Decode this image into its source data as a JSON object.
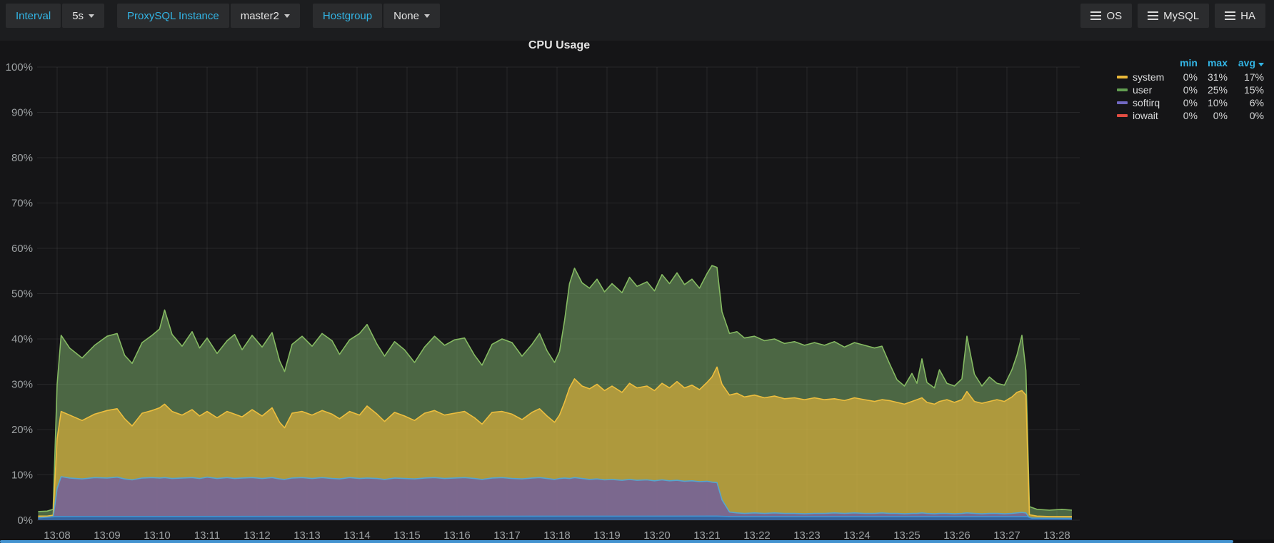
{
  "colors": {
    "accent_link": "#33b5e5",
    "page_bg": "#151517",
    "toolbar_bg": "#1c1d1f",
    "button_bg": "#2b2c2e",
    "grid": "rgba(255,255,255,0.08)",
    "tick_text": "#9ea2a4",
    "scrollbar": "#4493d0"
  },
  "toolbar": {
    "variables": [
      {
        "label": "Interval",
        "value": "5s"
      },
      {
        "label": "ProxySQL Instance",
        "value": "master2"
      },
      {
        "label": "Hostgroup",
        "value": "None"
      }
    ],
    "menus": [
      {
        "label": "OS"
      },
      {
        "label": "MySQL"
      },
      {
        "label": "HA"
      }
    ]
  },
  "panel": {
    "title": "CPU Usage",
    "legend": {
      "header": {
        "min": "min",
        "max": "max",
        "avg": "avg"
      },
      "sorted_by": "avg",
      "series": [
        {
          "name": "system",
          "color": "#EAB839",
          "min": "0%",
          "max": "31%",
          "avg": "17%"
        },
        {
          "name": "user",
          "color": "#629E51",
          "min": "0%",
          "max": "25%",
          "avg": "15%"
        },
        {
          "name": "softirq",
          "color": "#7168C2",
          "min": "0%",
          "max": "10%",
          "avg": "6%"
        },
        {
          "name": "iowait",
          "color": "#E24D42",
          "min": "0%",
          "max": "0%",
          "avg": "0%"
        }
      ]
    }
  },
  "chart_data": {
    "type": "area",
    "stacked": true,
    "title": "CPU Usage",
    "grid": true,
    "legend_position": "right-top",
    "xlabel": "",
    "ylabel": "",
    "ylim": [
      0,
      100
    ],
    "y_axis": {
      "labels": [
        "0%",
        "10%",
        "20%",
        "30%",
        "40%",
        "50%",
        "60%",
        "70%",
        "80%",
        "90%",
        "100%"
      ],
      "step": 10
    },
    "x_axis": {
      "start_minute": 8,
      "end_minute": 28,
      "labels": [
        "13:08",
        "13:09",
        "13:10",
        "13:11",
        "13:12",
        "13:13",
        "13:14",
        "13:15",
        "13:16",
        "13:17",
        "13:18",
        "13:19",
        "13:20",
        "13:21",
        "13:22",
        "13:23",
        "13:24",
        "13:25",
        "13:26",
        "13:27",
        "13:28"
      ]
    },
    "series_styles": {
      "user": {
        "fill": "#7EB26D",
        "fill_alpha": 0.52,
        "line": "#85BA62"
      },
      "system": {
        "fill": "#EAB839",
        "fill_alpha": 0.62,
        "line": "#EDBE3E"
      },
      "softirq": {
        "fill": "#705DA0",
        "fill_alpha": 0.82,
        "line": "#55A6CF"
      },
      "bottom_strip": {
        "fill": "#2F64A0",
        "fill_alpha": 0.9,
        "line": "#4493D0"
      }
    },
    "series_order_bottom_to_top": [
      "softirq",
      "system",
      "user"
    ],
    "points_format": [
      "minute",
      "softirq_stack_top_pct",
      "system_stack_top_pct",
      "user_stack_top_pct"
    ],
    "points": [
      [
        7.62,
        0.5,
        0.9,
        1.9
      ],
      [
        7.8,
        0.5,
        0.9,
        2.0
      ],
      [
        7.92,
        0.6,
        1.1,
        2.4
      ],
      [
        8.0,
        7.0,
        18.0,
        30.0
      ],
      [
        8.08,
        9.6,
        24.0,
        40.8
      ],
      [
        8.25,
        9.3,
        23.2,
        38.0
      ],
      [
        8.5,
        9.1,
        22.0,
        35.8
      ],
      [
        8.75,
        9.4,
        23.4,
        38.6
      ],
      [
        9.0,
        9.3,
        24.2,
        40.6
      ],
      [
        9.2,
        9.5,
        24.6,
        41.2
      ],
      [
        9.35,
        9.1,
        22.4,
        36.4
      ],
      [
        9.5,
        8.9,
        20.8,
        34.6
      ],
      [
        9.7,
        9.3,
        23.6,
        39.2
      ],
      [
        9.9,
        9.4,
        24.2,
        40.8
      ],
      [
        10.05,
        9.3,
        24.8,
        42.2
      ],
      [
        10.15,
        9.4,
        25.6,
        46.4
      ],
      [
        10.3,
        9.2,
        24.0,
        41.0
      ],
      [
        10.5,
        9.3,
        23.2,
        38.4
      ],
      [
        10.7,
        9.4,
        24.4,
        41.6
      ],
      [
        10.85,
        9.2,
        23.0,
        38.0
      ],
      [
        11.0,
        9.5,
        24.0,
        40.2
      ],
      [
        11.2,
        9.2,
        22.6,
        36.8
      ],
      [
        11.4,
        9.4,
        24.0,
        39.6
      ],
      [
        11.55,
        9.2,
        23.4,
        41.0
      ],
      [
        11.7,
        9.3,
        22.8,
        37.6
      ],
      [
        11.9,
        9.4,
        24.4,
        40.8
      ],
      [
        12.1,
        9.2,
        23.0,
        38.2
      ],
      [
        12.3,
        9.4,
        24.8,
        41.4
      ],
      [
        12.45,
        9.1,
        21.6,
        35.2
      ],
      [
        12.55,
        9.0,
        20.4,
        32.8
      ],
      [
        12.7,
        9.3,
        23.6,
        38.8
      ],
      [
        12.9,
        9.4,
        24.0,
        40.6
      ],
      [
        13.1,
        9.2,
        23.2,
        38.4
      ],
      [
        13.3,
        9.4,
        24.2,
        41.2
      ],
      [
        13.5,
        9.2,
        23.4,
        39.6
      ],
      [
        13.65,
        9.1,
        22.4,
        36.6
      ],
      [
        13.85,
        9.4,
        24.0,
        39.8
      ],
      [
        14.05,
        9.2,
        23.2,
        41.2
      ],
      [
        14.2,
        9.3,
        25.2,
        43.2
      ],
      [
        14.4,
        9.2,
        23.4,
        38.8
      ],
      [
        14.55,
        9.0,
        21.8,
        36.2
      ],
      [
        14.75,
        9.3,
        23.8,
        39.4
      ],
      [
        14.95,
        9.2,
        23.0,
        37.6
      ],
      [
        15.15,
        9.1,
        22.0,
        34.8
      ],
      [
        15.35,
        9.3,
        23.6,
        38.2
      ],
      [
        15.55,
        9.4,
        24.2,
        40.6
      ],
      [
        15.75,
        9.2,
        23.2,
        38.6
      ],
      [
        15.95,
        9.3,
        23.6,
        39.8
      ],
      [
        16.15,
        9.4,
        24.0,
        40.2
      ],
      [
        16.35,
        9.2,
        22.6,
        36.4
      ],
      [
        16.5,
        9.0,
        21.2,
        34.2
      ],
      [
        16.7,
        9.3,
        23.8,
        38.8
      ],
      [
        16.9,
        9.4,
        24.0,
        40.0
      ],
      [
        17.1,
        9.2,
        23.4,
        39.2
      ],
      [
        17.3,
        9.1,
        22.2,
        36.2
      ],
      [
        17.5,
        9.3,
        23.8,
        38.8
      ],
      [
        17.65,
        9.4,
        24.6,
        41.2
      ],
      [
        17.8,
        9.2,
        23.0,
        37.4
      ],
      [
        17.95,
        9.0,
        21.6,
        34.8
      ],
      [
        18.05,
        9.2,
        23.2,
        37.2
      ],
      [
        18.15,
        9.3,
        26.0,
        44.0
      ],
      [
        18.25,
        9.2,
        29.2,
        52.2
      ],
      [
        18.35,
        9.4,
        31.2,
        55.6
      ],
      [
        18.5,
        9.2,
        29.6,
        52.4
      ],
      [
        18.65,
        9.0,
        29.0,
        51.2
      ],
      [
        18.8,
        9.1,
        30.0,
        53.2
      ],
      [
        18.95,
        8.9,
        28.6,
        50.4
      ],
      [
        19.1,
        9.0,
        29.6,
        52.2
      ],
      [
        19.3,
        8.8,
        28.2,
        50.2
      ],
      [
        19.45,
        9.0,
        30.2,
        53.6
      ],
      [
        19.6,
        8.8,
        29.2,
        51.6
      ],
      [
        19.8,
        8.9,
        29.6,
        52.6
      ],
      [
        19.95,
        8.7,
        28.6,
        50.6
      ],
      [
        20.1,
        8.9,
        30.2,
        54.2
      ],
      [
        20.25,
        8.7,
        29.2,
        52.2
      ],
      [
        20.4,
        8.8,
        30.6,
        54.6
      ],
      [
        20.55,
        8.6,
        29.2,
        52.0
      ],
      [
        20.7,
        8.7,
        29.8,
        53.2
      ],
      [
        20.85,
        8.5,
        28.8,
        51.2
      ],
      [
        21.0,
        8.6,
        30.4,
        54.4
      ],
      [
        21.1,
        8.4,
        31.6,
        56.2
      ],
      [
        21.2,
        8.3,
        33.8,
        55.8
      ],
      [
        21.3,
        4.5,
        30.0,
        46.0
      ],
      [
        21.45,
        1.8,
        27.6,
        41.2
      ],
      [
        21.6,
        1.6,
        28.0,
        41.6
      ],
      [
        21.75,
        1.5,
        27.2,
        40.2
      ],
      [
        21.95,
        1.6,
        27.6,
        40.6
      ],
      [
        22.15,
        1.5,
        27.0,
        39.6
      ],
      [
        22.35,
        1.6,
        27.4,
        40.0
      ],
      [
        22.55,
        1.5,
        26.8,
        39.0
      ],
      [
        22.75,
        1.5,
        27.0,
        39.4
      ],
      [
        22.95,
        1.4,
        26.6,
        38.6
      ],
      [
        23.15,
        1.5,
        27.0,
        39.2
      ],
      [
        23.35,
        1.5,
        26.6,
        38.6
      ],
      [
        23.55,
        1.6,
        26.8,
        39.4
      ],
      [
        23.75,
        1.5,
        26.4,
        38.2
      ],
      [
        23.95,
        1.6,
        27.0,
        39.2
      ],
      [
        24.15,
        1.5,
        26.6,
        38.6
      ],
      [
        24.35,
        1.5,
        26.2,
        38.0
      ],
      [
        24.5,
        1.6,
        26.6,
        38.4
      ],
      [
        24.65,
        1.5,
        26.4,
        34.6
      ],
      [
        24.8,
        1.5,
        26.0,
        31.0
      ],
      [
        24.95,
        1.4,
        25.6,
        29.6
      ],
      [
        25.1,
        1.5,
        26.2,
        32.4
      ],
      [
        25.2,
        1.5,
        26.6,
        30.2
      ],
      [
        25.3,
        1.6,
        27.0,
        35.6
      ],
      [
        25.4,
        1.5,
        26.0,
        30.4
      ],
      [
        25.55,
        1.4,
        25.6,
        29.2
      ],
      [
        25.65,
        1.5,
        26.2,
        33.2
      ],
      [
        25.8,
        1.5,
        26.6,
        30.2
      ],
      [
        25.95,
        1.4,
        26.0,
        29.6
      ],
      [
        26.1,
        1.5,
        26.6,
        31.2
      ],
      [
        26.2,
        1.6,
        28.4,
        40.6
      ],
      [
        26.35,
        1.5,
        26.2,
        32.2
      ],
      [
        26.5,
        1.4,
        25.8,
        29.6
      ],
      [
        26.65,
        1.5,
        26.2,
        31.6
      ],
      [
        26.8,
        1.5,
        26.6,
        30.2
      ],
      [
        26.95,
        1.4,
        26.2,
        29.8
      ],
      [
        27.1,
        1.5,
        27.2,
        33.2
      ],
      [
        27.2,
        1.6,
        28.2,
        36.4
      ],
      [
        27.3,
        1.7,
        28.6,
        40.8
      ],
      [
        27.38,
        1.6,
        27.6,
        33.0
      ],
      [
        27.45,
        0.5,
        1.2,
        3.0
      ],
      [
        27.6,
        0.4,
        0.9,
        2.4
      ],
      [
        27.85,
        0.4,
        0.8,
        2.2
      ],
      [
        28.1,
        0.4,
        0.8,
        2.4
      ],
      [
        28.3,
        0.4,
        0.8,
        2.2
      ]
    ],
    "bottom_strip_points": [
      [
        7.62,
        0.5
      ],
      [
        7.95,
        0.8
      ],
      [
        21.2,
        0.9
      ],
      [
        21.45,
        0.8
      ],
      [
        27.4,
        0.8
      ],
      [
        27.5,
        0.45
      ],
      [
        28.3,
        0.4
      ]
    ]
  }
}
